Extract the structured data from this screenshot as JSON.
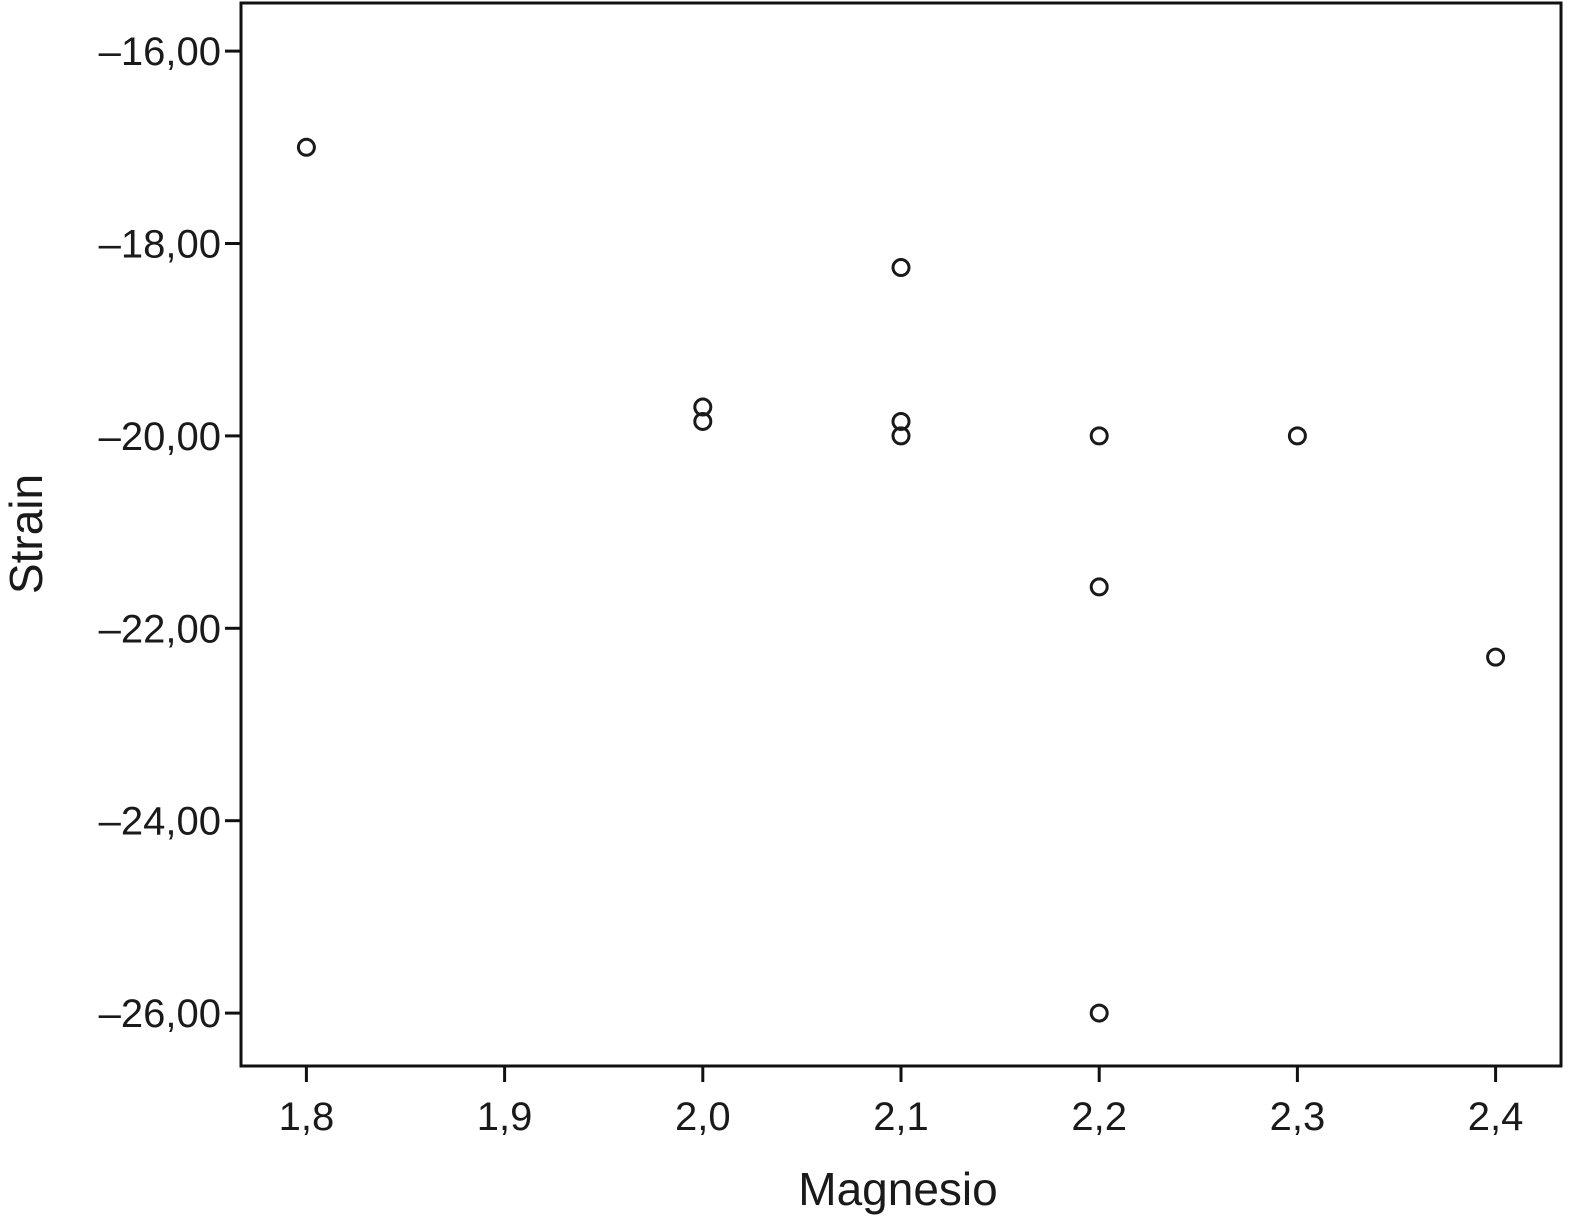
{
  "chart_data": {
    "type": "scatter",
    "title": "",
    "xlabel": "Magnesio",
    "ylabel": "Strain",
    "xlim": [
      1.767,
      2.433
    ],
    "ylim": [
      -26.55,
      -15.5
    ],
    "x_ticks": [
      1.8,
      1.9,
      2.0,
      2.1,
      2.2,
      2.3,
      2.4
    ],
    "x_tick_labels": [
      "1,8",
      "1,9",
      "2,0",
      "2,1",
      "2,2",
      "2,3",
      "2,4"
    ],
    "y_ticks": [
      -16,
      -18,
      -20,
      -22,
      -24,
      -26
    ],
    "y_tick_labels": [
      "–16,00",
      "–18,00",
      "–20,00",
      "–22,00",
      "–24,00",
      "–26,00"
    ],
    "grid": false,
    "legend": "none",
    "series": [
      {
        "x": [
          1.8,
          2.0,
          2.0,
          2.1,
          2.1,
          2.1,
          2.2,
          2.2,
          2.2,
          2.3,
          2.4
        ],
        "y": [
          -17.0,
          -19.7,
          -19.85,
          -18.25,
          -19.85,
          -20.0,
          -20.0,
          -21.57,
          -26.0,
          -20.0,
          -22.3
        ]
      }
    ]
  }
}
